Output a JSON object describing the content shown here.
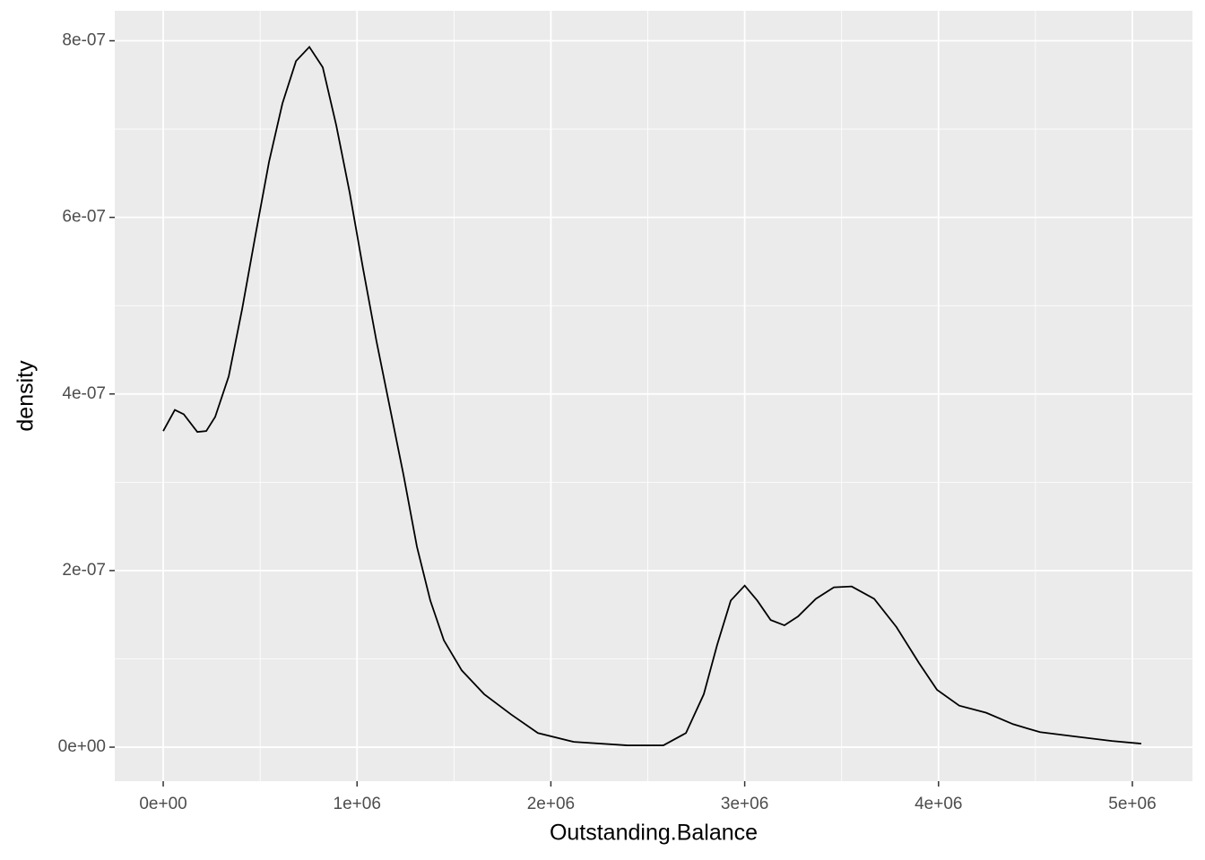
{
  "chart_data": {
    "type": "line",
    "x_label": "Outstanding.Balance",
    "y_label": "density",
    "xlim": [
      -250000,
      5310000
    ],
    "ylim": [
      -3.85e-08,
      8.34e-07
    ],
    "xticks": [
      {
        "value": 0,
        "label": "0e+00"
      },
      {
        "value": 1000000,
        "label": "1e+06"
      },
      {
        "value": 2000000,
        "label": "2e+06"
      },
      {
        "value": 3000000,
        "label": "3e+06"
      },
      {
        "value": 4000000,
        "label": "4e+06"
      },
      {
        "value": 5000000,
        "label": "5e+06"
      }
    ],
    "yticks": [
      {
        "value": 0,
        "label": "0e+00"
      },
      {
        "value": 2e-07,
        "label": "2e-07"
      },
      {
        "value": 4e-07,
        "label": "4e-07"
      },
      {
        "value": 6e-07,
        "label": "6e-07"
      },
      {
        "value": 8e-07,
        "label": "8e-07"
      }
    ],
    "xminor": [
      500000,
      1500000,
      2500000,
      3500000,
      4500000
    ],
    "yminor": [
      1e-07,
      3e-07,
      5e-07,
      7e-07
    ],
    "grid": true,
    "background": "#ebebeb",
    "color": "#000000",
    "x": [
      0,
      60000,
      106000,
      176000,
      222000,
      268000,
      338000,
      407000,
      476000,
      546000,
      615000,
      685000,
      754000,
      823000,
      893000,
      962000,
      1031000,
      1100000,
      1170000,
      1240000,
      1309000,
      1378000,
      1448000,
      1540000,
      1656000,
      1795000,
      1933000,
      2118000,
      2396000,
      2580000,
      2697000,
      2789000,
      2858000,
      2928000,
      3000000,
      3065000,
      3134000,
      3205000,
      3275000,
      3367000,
      3460000,
      3552000,
      3668000,
      3783000,
      3900000,
      3992000,
      4107000,
      4246000,
      4385000,
      4524000,
      4709000,
      4894000,
      5046000
    ],
    "values": [
      3.58e-07,
      3.82e-07,
      3.77e-07,
      3.57e-07,
      3.58e-07,
      3.74e-07,
      4.2e-07,
      4.96e-07,
      5.8e-07,
      6.63e-07,
      7.29e-07,
      7.77e-07,
      7.93e-07,
      7.7e-07,
      7.04e-07,
      6.28e-07,
      5.42e-07,
      4.6e-07,
      3.84e-07,
      3.08e-07,
      2.27e-07,
      1.66e-07,
      1.21e-07,
      8.7e-08,
      6e-08,
      3.7e-08,
      1.6e-08,
      6e-09,
      2e-09,
      2e-09,
      1.6e-08,
      6e-08,
      1.16e-07,
      1.66e-07,
      1.83e-07,
      1.66e-07,
      1.44e-07,
      1.38e-07,
      1.48e-07,
      1.68e-07,
      1.81e-07,
      1.82e-07,
      1.68e-07,
      1.36e-07,
      9.5e-08,
      6.5e-08,
      4.7e-08,
      3.9e-08,
      2.6e-08,
      1.7e-08,
      1.2e-08,
      7e-09,
      4e-09
    ]
  }
}
